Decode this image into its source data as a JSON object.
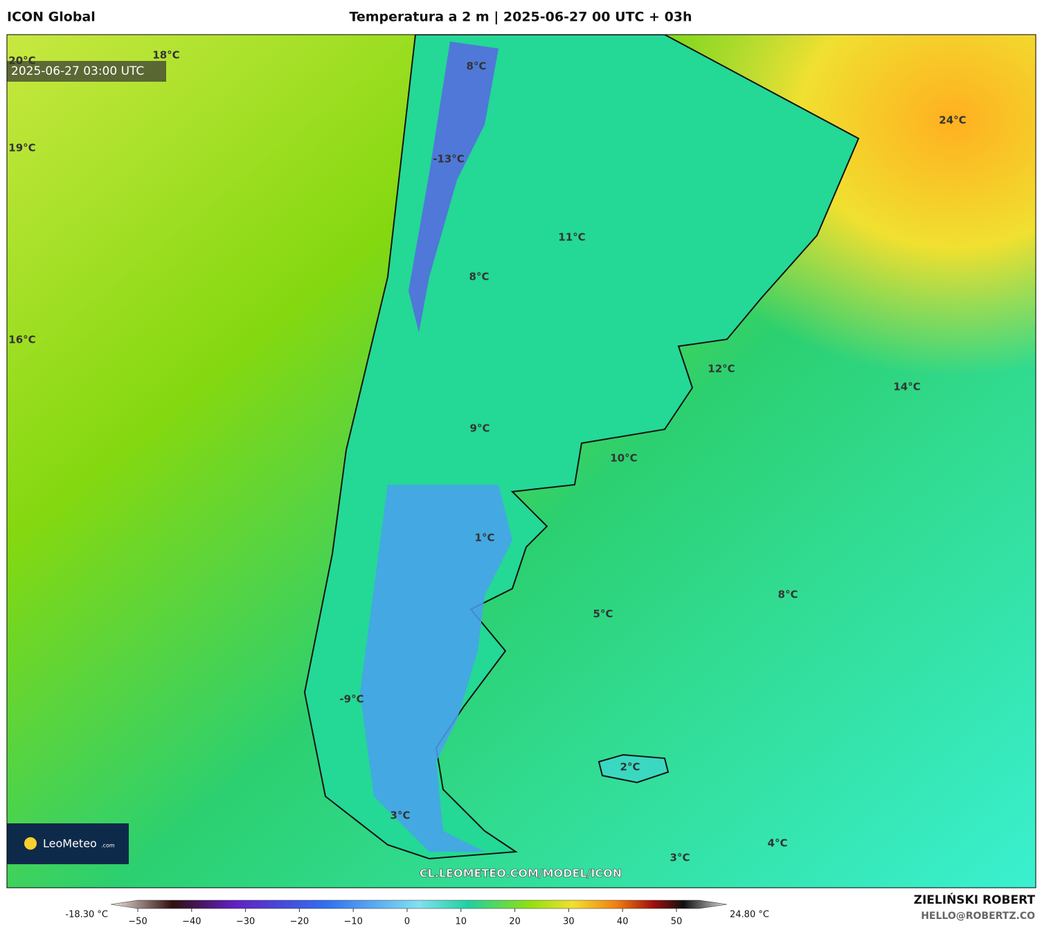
{
  "header": {
    "model": "ICON Global",
    "title": "Temperatura a 2 m | 2025-06-27 00 UTC + 03h"
  },
  "map": {
    "timestamp": "2025-06-27 03:00 UTC",
    "labels": [
      "20°C",
      "18°C",
      "19°C",
      "16°C",
      "8°C",
      "-13°C",
      "11°C",
      "8°C",
      "24°C",
      "12°C",
      "14°C",
      "9°C",
      "10°C",
      "1°C",
      "8°C",
      "5°C",
      "-9°C",
      "2°C",
      "3°C",
      "4°C",
      "3°C"
    ],
    "url": "CL.LEOMETEO.COM/MODEL/ICON",
    "logo": {
      "name": "LeoMeteo",
      "suffix": ".com"
    }
  },
  "colorbar": {
    "min": "-18.30 °C",
    "max": "24.80 °C",
    "ticks": [
      "−50",
      "−40",
      "−30",
      "−20",
      "−10",
      "0",
      "10",
      "20",
      "30",
      "40",
      "50"
    ]
  },
  "credit": {
    "author": "ZIELIŃSKI ROBERT",
    "email": "HELLO@ROBERTZ.CO"
  }
}
